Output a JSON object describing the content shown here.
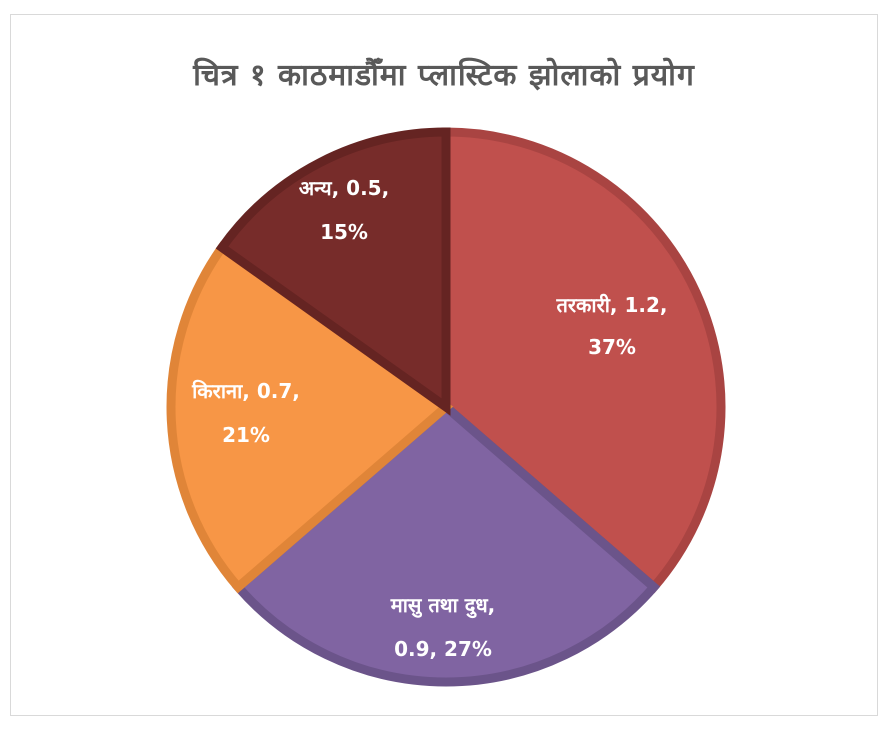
{
  "chart_data": {
    "type": "pie",
    "title": "चित्र १ काठमाडौँमा प्लास्टिक झोलाको प्रयोग",
    "categories": [
      "तरकारी",
      "मासु तथा दुध",
      "किराना",
      "अन्य"
    ],
    "values": [
      1.2,
      0.9,
      0.7,
      0.5
    ],
    "percents": [
      "37%",
      "27%",
      "21%",
      "15%"
    ],
    "colors": [
      "#c0504d",
      "#8064a2",
      "#f79646",
      "#772c2a"
    ],
    "edge_colors": [
      "#a94442",
      "#6b548a",
      "#e08538",
      "#652422"
    ],
    "data_labels": [
      [
        "तरकारी, 1.2,",
        "37%"
      ],
      [
        "मासु तथा दुध,",
        "0.9, 27%"
      ],
      [
        "किराना, 0.7,",
        "21%"
      ],
      [
        "अन्य, 0.5,",
        "15%"
      ]
    ],
    "start": "12 o'clock, clockwise"
  }
}
